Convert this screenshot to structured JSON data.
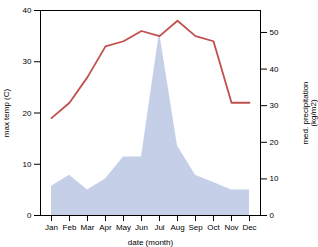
{
  "chart_data": {
    "type": "line",
    "categories": [
      "Jan",
      "Feb",
      "Mar",
      "Apr",
      "May",
      "Jun",
      "Jul",
      "Aug",
      "Sep",
      "Oct",
      "Nov",
      "Dec"
    ],
    "xlabel": "date (month)",
    "ylabel": "max temp (C)",
    "y2label": "med. precipitation\n(kg/m2)",
    "ylim": [
      0,
      40
    ],
    "yticks": [
      0,
      10,
      20,
      30,
      40
    ],
    "y2lim": [
      0,
      56
    ],
    "y2ticks": [
      0,
      10,
      20,
      30,
      40,
      50
    ],
    "series": [
      {
        "type": "area",
        "axis": "y2",
        "color": "#c5cfe8",
        "values": [
          8,
          11,
          7,
          10,
          16,
          16,
          50,
          19,
          11,
          9,
          7,
          7
        ]
      },
      {
        "type": "line",
        "color": "#c0504d",
        "values": [
          19,
          22,
          27,
          33,
          34,
          36,
          35,
          38,
          35,
          34,
          22,
          22
        ]
      }
    ]
  }
}
